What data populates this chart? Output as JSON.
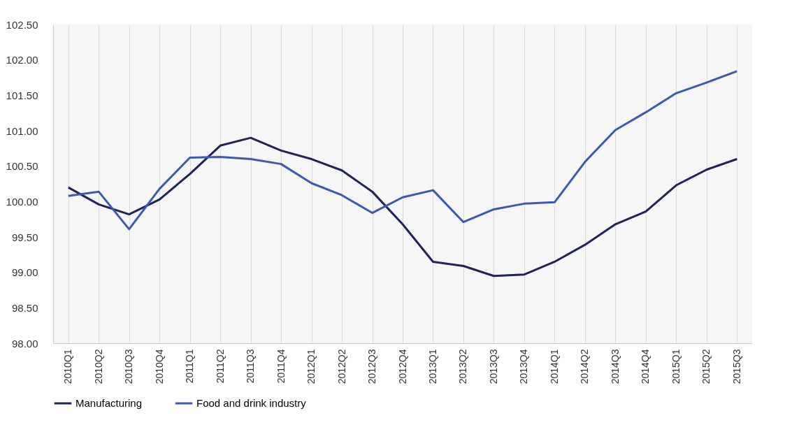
{
  "chart_data": {
    "type": "line",
    "categories": [
      "2010Q1",
      "2010Q2",
      "2010Q3",
      "2010Q4",
      "2011Q1",
      "2011Q2",
      "2011Q3",
      "2011Q4",
      "2012Q1",
      "2012Q2",
      "2012Q3",
      "2012Q4",
      "2013Q1",
      "2013Q2",
      "2013Q3",
      "2013Q4",
      "2014Q1",
      "2014Q2",
      "2014Q3",
      "2014Q4",
      "2015Q1",
      "2015Q2",
      "2015Q3"
    ],
    "series": [
      {
        "name": "Manufacturing",
        "color": "#1f2358",
        "values": [
          100.2,
          99.96,
          99.82,
          100.03,
          100.39,
          100.79,
          100.9,
          100.72,
          100.6,
          100.44,
          100.14,
          99.68,
          99.15,
          99.09,
          98.95,
          98.97,
          99.15,
          99.39,
          99.68,
          99.86,
          100.23,
          100.45,
          100.6
        ]
      },
      {
        "name": "Food and drink industry",
        "color": "#3f57b0",
        "values": [
          100.08,
          100.14,
          99.61,
          100.18,
          100.62,
          100.63,
          100.6,
          100.53,
          100.26,
          100.09,
          99.84,
          100.06,
          100.16,
          99.71,
          99.89,
          99.97,
          99.99,
          100.56,
          101.01,
          101.26,
          101.53,
          101.68,
          101.84
        ]
      }
    ],
    "ylim": [
      98,
      102.5
    ],
    "yticks": [
      {
        "value": 98,
        "label": "98.00"
      },
      {
        "value": 98.5,
        "label": "98.50"
      },
      {
        "value": 99,
        "label": "99.00"
      },
      {
        "value": 99.5,
        "label": "99.50"
      },
      {
        "value": 100,
        "label": "100.00"
      },
      {
        "value": 100.5,
        "label": "100.50"
      },
      {
        "value": 101,
        "label": "101.00"
      },
      {
        "value": 101.5,
        "label": "101.50"
      },
      {
        "value": 102,
        "label": "102.00"
      },
      {
        "value": 102.5,
        "label": "102.50"
      }
    ],
    "grid": "x",
    "legend": "bottom",
    "marker": "none",
    "line_style": "solid"
  }
}
